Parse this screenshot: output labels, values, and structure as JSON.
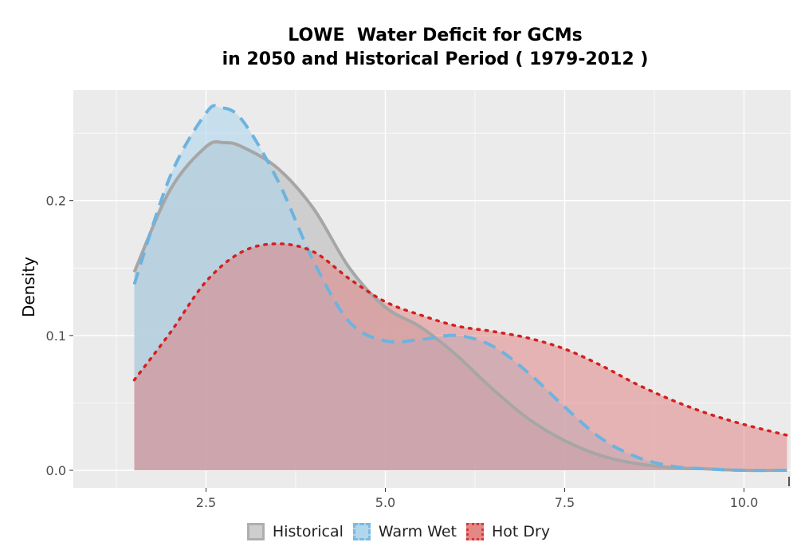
{
  "chart_data": {
    "type": "area",
    "title_lines": [
      "LOWE  Water Deficit for GCMs",
      "in 2050 and Historical Period ( 1979-2012 )"
    ],
    "xlabel": "",
    "ylabel": "Density",
    "xlim": [
      0.65,
      10.65
    ],
    "ylim": [
      -0.013,
      0.282
    ],
    "x_ticks": [
      2.5,
      5.0,
      7.5,
      10.0
    ],
    "x_tick_labels": [
      "2.5",
      "5.0",
      "7.5",
      "10.0"
    ],
    "y_ticks": [
      0.0,
      0.1,
      0.2
    ],
    "y_tick_labels": [
      "0.0",
      "0.1",
      "0.2"
    ],
    "grid": true,
    "legend_position": "bottom",
    "series": [
      {
        "name": "Historical",
        "line_style": "solid",
        "line_color": "#a6a6a6",
        "fill_color": "#c9c9c9",
        "x": [
          1.5,
          2.0,
          2.5,
          2.75,
          3.0,
          3.5,
          4.0,
          4.5,
          5.0,
          5.5,
          6.0,
          6.5,
          7.0,
          7.5,
          8.0,
          8.5,
          9.0,
          9.5,
          10.0,
          10.6
        ],
        "y": [
          0.147,
          0.208,
          0.24,
          0.243,
          0.24,
          0.224,
          0.194,
          0.15,
          0.121,
          0.106,
          0.085,
          0.06,
          0.038,
          0.022,
          0.011,
          0.005,
          0.002,
          0.001,
          0.0,
          0.0
        ]
      },
      {
        "name": "Warm Wet",
        "line_style": "dashed",
        "line_color": "#6db3e0",
        "fill_color": "#a9d3ec",
        "x": [
          1.5,
          2.0,
          2.5,
          2.7,
          3.0,
          3.5,
          4.0,
          4.5,
          5.0,
          5.5,
          6.0,
          6.5,
          7.0,
          7.5,
          8.0,
          8.5,
          9.0,
          9.5,
          10.0,
          10.6
        ],
        "y": [
          0.138,
          0.218,
          0.265,
          0.269,
          0.26,
          0.215,
          0.155,
          0.11,
          0.096,
          0.097,
          0.1,
          0.092,
          0.072,
          0.047,
          0.024,
          0.01,
          0.003,
          0.001,
          0.0,
          0.0
        ]
      },
      {
        "name": "Hot Dry",
        "line_style": "dotted",
        "line_color": "#d42020",
        "fill_color": "#e07b7b",
        "x": [
          1.5,
          2.0,
          2.5,
          3.0,
          3.5,
          4.0,
          4.5,
          5.0,
          5.5,
          6.0,
          6.5,
          7.0,
          7.5,
          8.0,
          8.5,
          9.0,
          9.5,
          10.0,
          10.6
        ],
        "y": [
          0.067,
          0.102,
          0.14,
          0.162,
          0.168,
          0.162,
          0.142,
          0.125,
          0.115,
          0.107,
          0.103,
          0.098,
          0.09,
          0.078,
          0.064,
          0.052,
          0.042,
          0.034,
          0.026
        ]
      }
    ]
  }
}
